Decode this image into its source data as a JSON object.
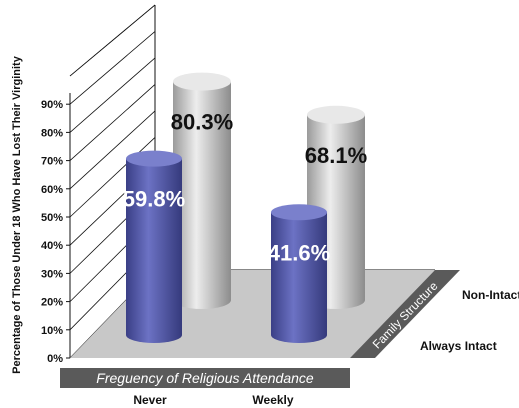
{
  "chart_data": {
    "type": "bar",
    "style": "3d-cylinder",
    "categories": [
      "Never",
      "Weekly"
    ],
    "series": [
      {
        "name": "Non-Intact",
        "values": [
          80.3,
          68.1
        ],
        "color": "#c4c4c4"
      },
      {
        "name": "Always Intact",
        "values": [
          59.8,
          41.6
        ],
        "color": "#4a4f9c"
      }
    ],
    "data_labels": [
      "80.3%",
      "68.1%",
      "59.8%",
      "41.6%"
    ],
    "xlabel": "Freguency of Religious Attendance",
    "ylabel": "Percentage of Those Under 18 Who Have Lost Their Virginity",
    "zlabel": "Family Structure",
    "ylim": [
      0,
      100
    ],
    "yticks": [
      "0%",
      "10%",
      "20%",
      "30%",
      "40%",
      "50%",
      "60%",
      "70%",
      "80%",
      "90%"
    ],
    "grid": false
  }
}
